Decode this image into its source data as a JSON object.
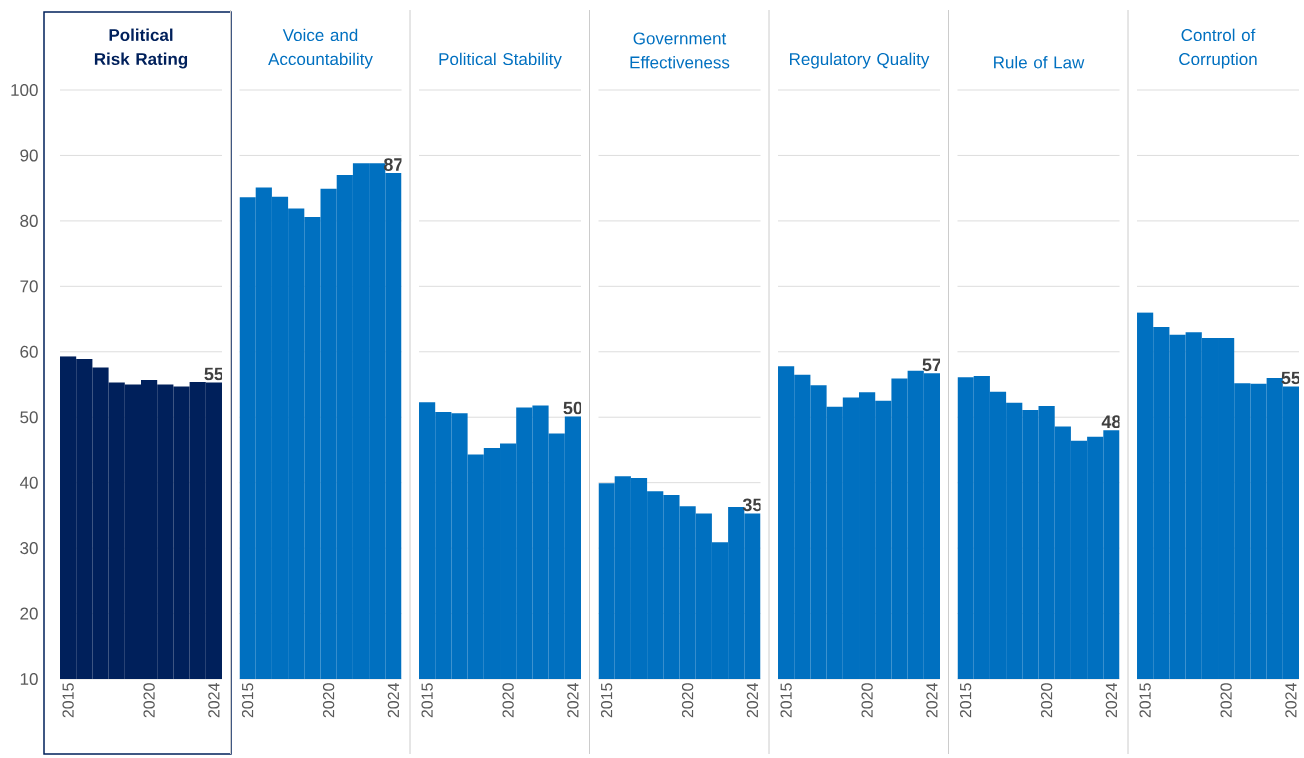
{
  "chart_data": [
    {
      "type": "bar",
      "title": "Political Risk Rating",
      "categories": [
        "2015",
        null,
        null,
        null,
        null,
        "2020",
        null,
        null,
        null,
        "2024"
      ],
      "values": [
        59.3,
        58.9,
        57.6,
        55.3,
        55.0,
        55.7,
        55.0,
        54.7,
        55.4,
        55.3
      ],
      "value_labels": [
        null,
        null,
        null,
        null,
        null,
        null,
        null,
        null,
        null,
        "55"
      ],
      "color": "#00205b",
      "ylim": [
        10,
        100
      ],
      "yticks": [
        10,
        20,
        30,
        40,
        50,
        60,
        70,
        80,
        90,
        100
      ],
      "grid": "y"
    },
    {
      "type": "bar",
      "title": "Voice and Accountability",
      "categories": [
        "2015",
        null,
        null,
        null,
        null,
        "2020",
        null,
        null,
        null,
        "2024"
      ],
      "values": [
        83.6,
        85.1,
        83.7,
        81.9,
        80.6,
        84.9,
        87.0,
        88.8,
        88.8,
        87.3
      ],
      "value_labels": [
        null,
        null,
        null,
        null,
        null,
        null,
        null,
        null,
        null,
        "87"
      ],
      "color": "#0070c0",
      "ylim": [
        10,
        100
      ],
      "yticks": [
        10,
        20,
        30,
        40,
        50,
        60,
        70,
        80,
        90,
        100
      ],
      "grid": "y",
      "tick_labels": "x"
    },
    {
      "type": "bar",
      "title": "Political Stability",
      "categories": [
        "2015",
        null,
        null,
        null,
        null,
        "2020",
        null,
        null,
        null,
        "2024"
      ],
      "values": [
        52.3,
        50.8,
        50.6,
        44.3,
        45.3,
        46.0,
        51.5,
        51.8,
        47.5,
        50.1
      ],
      "value_labels": [
        null,
        null,
        null,
        null,
        null,
        null,
        null,
        null,
        null,
        "50"
      ],
      "color": "#0070c0",
      "ylim": [
        10,
        100
      ],
      "yticks": [
        10,
        20,
        30,
        40,
        50,
        60,
        70,
        80,
        90,
        100
      ],
      "grid": "y",
      "tick_labels": "x"
    },
    {
      "type": "bar",
      "title": "Government Effectiveness",
      "categories": [
        "2015",
        null,
        null,
        null,
        null,
        "2020",
        null,
        null,
        null,
        "2024"
      ],
      "values": [
        39.9,
        41.0,
        40.7,
        38.7,
        38.1,
        36.4,
        35.3,
        30.9,
        36.3,
        35.3
      ],
      "value_labels": [
        null,
        null,
        null,
        null,
        null,
        null,
        null,
        null,
        null,
        "35"
      ],
      "color": "#0070c0",
      "ylim": [
        10,
        100
      ],
      "yticks": [
        10,
        20,
        30,
        40,
        50,
        60,
        70,
        80,
        90,
        100
      ],
      "grid": "y",
      "tick_labels": "x"
    },
    {
      "type": "bar",
      "title": "Regulatory Quality",
      "categories": [
        "2015",
        null,
        null,
        null,
        null,
        "2020",
        null,
        null,
        null,
        "2024"
      ],
      "values": [
        57.8,
        56.5,
        54.9,
        51.6,
        53.0,
        53.8,
        52.5,
        55.9,
        57.1,
        56.7
      ],
      "value_labels": [
        null,
        null,
        null,
        null,
        null,
        null,
        null,
        null,
        null,
        "57"
      ],
      "color": "#0070c0",
      "ylim": [
        10,
        100
      ],
      "yticks": [
        10,
        20,
        30,
        40,
        50,
        60,
        70,
        80,
        90,
        100
      ],
      "grid": "y",
      "tick_labels": "x"
    },
    {
      "type": "bar",
      "title": "Rule of Law",
      "categories": [
        "2015",
        null,
        null,
        null,
        null,
        "2020",
        null,
        null,
        null,
        "2024"
      ],
      "values": [
        56.1,
        56.3,
        53.9,
        52.2,
        51.1,
        51.7,
        48.6,
        46.4,
        47.0,
        48.0
      ],
      "value_labels": [
        null,
        null,
        null,
        null,
        null,
        null,
        null,
        null,
        null,
        "48"
      ],
      "color": "#0070c0",
      "ylim": [
        10,
        100
      ],
      "yticks": [
        10,
        20,
        30,
        40,
        50,
        60,
        70,
        80,
        90,
        100
      ],
      "grid": "y",
      "tick_labels": "x"
    },
    {
      "type": "bar",
      "title": "Control of Corruption",
      "categories": [
        "2015",
        null,
        null,
        null,
        null,
        "2020",
        null,
        null,
        null,
        "2024"
      ],
      "values": [
        66.0,
        63.8,
        62.6,
        63.0,
        62.1,
        62.1,
        55.2,
        55.1,
        56.0,
        54.7
      ],
      "value_labels": [
        null,
        null,
        null,
        null,
        null,
        null,
        null,
        null,
        null,
        "55"
      ],
      "color": "#0070c0",
      "ylim": [
        10,
        100
      ],
      "yticks": [
        10,
        20,
        30,
        40,
        50,
        60,
        70,
        80,
        90,
        100
      ],
      "grid": "y",
      "tick_labels": "x"
    }
  ]
}
